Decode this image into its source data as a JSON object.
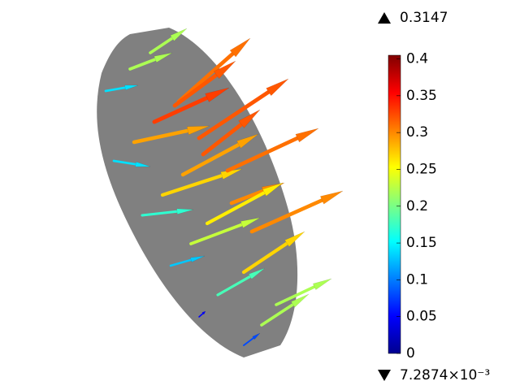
{
  "chart_data": {
    "type": "arrow",
    "arrows": {
      "values": [
        0.22,
        0.22,
        0.14,
        0.31,
        0.32,
        0.33,
        0.29,
        0.32,
        0.32,
        0.29,
        0.27,
        0.14,
        0.31,
        0.3,
        0.26,
        0.17,
        0.23,
        0.3,
        0.27,
        0.13,
        0.18,
        0.22,
        0.22,
        0.05,
        0.08
      ]
    },
    "colorbar": {
      "clim": [
        0,
        0.405
      ],
      "ticks": [
        0,
        0.05,
        0.1,
        0.15,
        0.2,
        0.25,
        0.3,
        0.35,
        0.4
      ],
      "colormap": "jet"
    },
    "max": 0.3147,
    "min": {
      "value": 0.0072874,
      "label": "7.2874×10⁻³"
    }
  }
}
